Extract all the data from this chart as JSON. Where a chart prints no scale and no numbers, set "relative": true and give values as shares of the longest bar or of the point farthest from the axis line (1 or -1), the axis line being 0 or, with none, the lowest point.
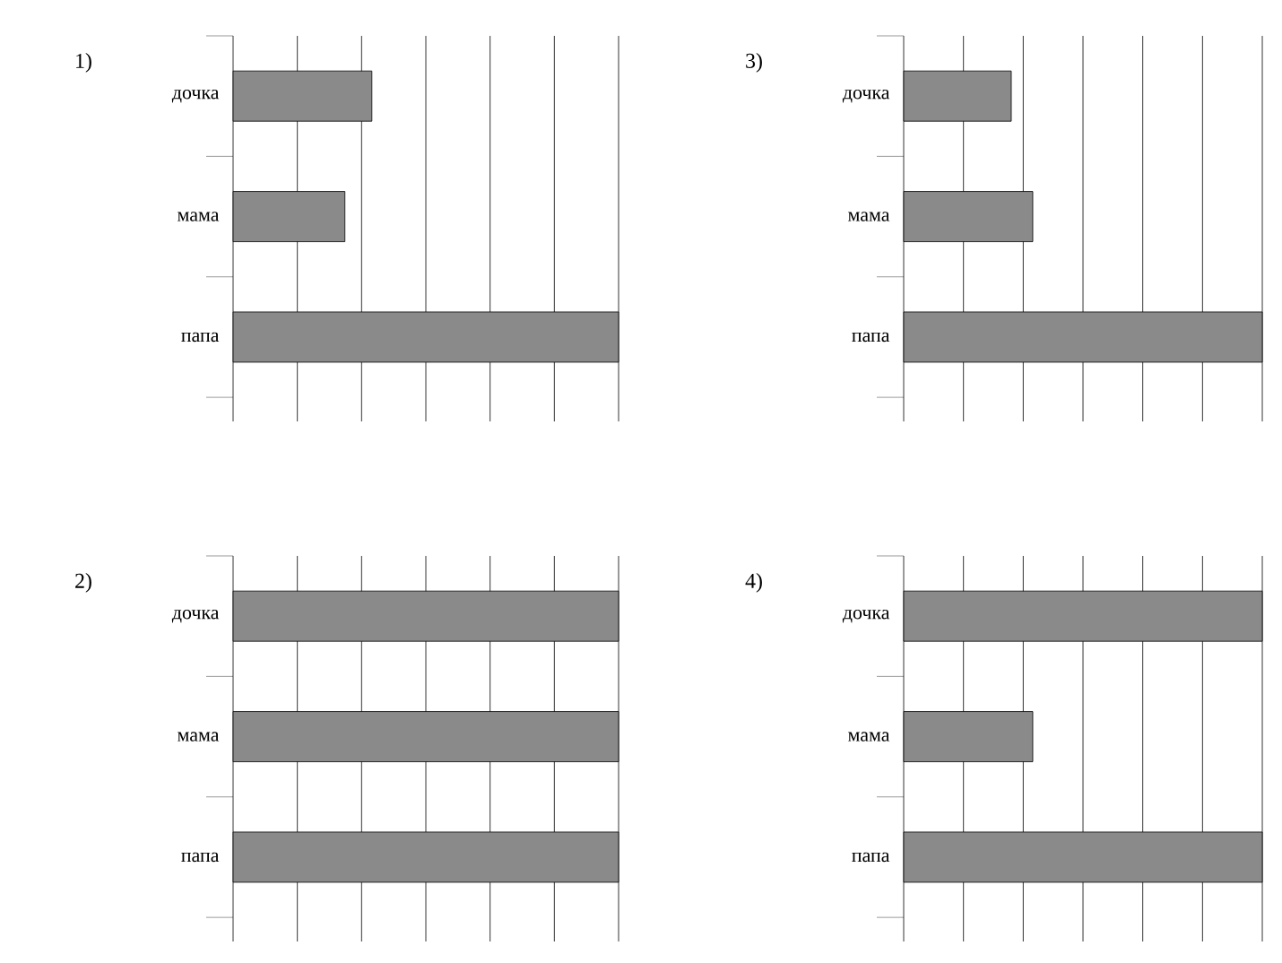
{
  "chart_data": [
    {
      "type": "bar",
      "orientation": "horizontal",
      "relative": true,
      "title": "1)",
      "categories": [
        "дочка",
        "мама",
        "папа"
      ],
      "values": [
        0.36,
        0.29,
        1
      ],
      "color": "#8a8a8a",
      "grid": "x"
    },
    {
      "type": "bar",
      "orientation": "horizontal",
      "relative": true,
      "title": "3)",
      "categories": [
        "дочка",
        "мама",
        "папа"
      ],
      "values": [
        0.3,
        0.36,
        1
      ],
      "color": "#8a8a8a",
      "grid": "x"
    },
    {
      "type": "bar",
      "orientation": "horizontal",
      "relative": true,
      "title": "2)",
      "categories": [
        "дочка",
        "мама",
        "папа"
      ],
      "values": [
        1,
        1,
        1
      ],
      "color": "#8a8a8a",
      "grid": "x"
    },
    {
      "type": "bar",
      "orientation": "horizontal",
      "relative": true,
      "title": "4)",
      "categories": [
        "дочка",
        "мама",
        "папа"
      ],
      "values": [
        1,
        0.36,
        1
      ],
      "color": "#8a8a8a",
      "grid": "x"
    }
  ]
}
